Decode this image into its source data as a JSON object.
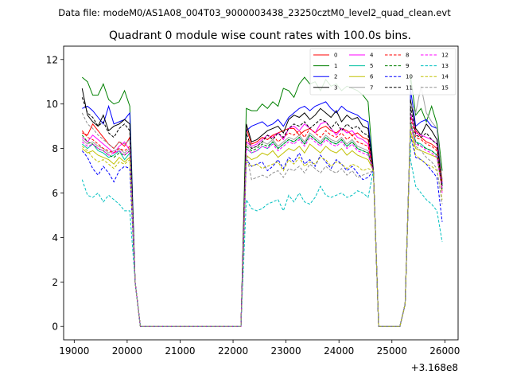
{
  "header": {
    "data_file": "Data file: modeM0/AS1A08_004T03_9000003438_23250cztM0_level2_quad_clean.evt"
  },
  "chart_data": {
    "type": "line",
    "title": "Quadrant 0 module wise count rates with 100.0s bins.",
    "xlabel": "",
    "ylabel": "",
    "x_offset_label": "+3.168e8",
    "xlim": [
      18800,
      26250
    ],
    "ylim": [
      -0.6,
      12.6
    ],
    "x_ticks": [
      19000,
      20000,
      21000,
      22000,
      23000,
      24000,
      25000,
      26000
    ],
    "x_tick_labels": [
      "19000",
      "20000",
      "21000",
      "22000",
      "23000",
      "24000",
      "25000",
      "26000"
    ],
    "y_ticks": [
      0,
      2,
      4,
      6,
      8,
      10,
      12
    ],
    "y_tick_labels": [
      "0",
      "2",
      "4",
      "6",
      "8",
      "10",
      "12"
    ],
    "legend_position": "top-right",
    "segments": [
      {
        "start": 19150,
        "n": 10
      },
      {
        "start": 20150,
        "n": 2,
        "values": [
          2.0,
          0.0
        ]
      },
      {
        "start": 20250,
        "n": 20,
        "values": [
          0,
          0,
          0,
          0,
          0,
          0,
          0,
          0,
          0,
          0,
          0,
          0,
          0,
          0,
          0,
          0,
          0,
          0,
          0,
          0
        ]
      },
      {
        "start": 22250,
        "n": 24
      },
      {
        "start": 24650,
        "n": 4,
        "values": [
          7.0,
          0.0,
          0.0,
          0.0
        ]
      },
      {
        "start": 25050,
        "n": 4,
        "values": [
          0.0,
          0.0,
          1.0,
          9.0
        ]
      },
      {
        "start": 25350,
        "n": 7
      }
    ],
    "series": [
      {
        "name": "0",
        "color": "#ff0000",
        "dashed": false,
        "s1": [
          8.7,
          8.6,
          9.1,
          8.8,
          8.5,
          8.2,
          8.0,
          8.3,
          8.1,
          8.5
        ],
        "s2": [
          8.9,
          8.2,
          8.3,
          8.5,
          8.4,
          8.6,
          8.7,
          8.8,
          8.9,
          8.9,
          8.6,
          8.8,
          8.9,
          8.7,
          8.9,
          9.0,
          8.8,
          8.7,
          8.9,
          8.8,
          8.6,
          8.7,
          8.5,
          8.4
        ],
        "s3": [
          9.5,
          8.8,
          8.5,
          8.3,
          8.2,
          8.0,
          6.6
        ]
      },
      {
        "name": "1",
        "color": "#008000",
        "dashed": false,
        "s1": [
          11.2,
          11.0,
          10.4,
          10.4,
          10.9,
          10.2,
          10.0,
          10.1,
          10.6,
          9.9
        ],
        "s2": [
          9.8,
          9.7,
          9.7,
          10.0,
          9.8,
          10.1,
          9.9,
          10.7,
          10.6,
          10.3,
          10.9,
          11.2,
          10.9,
          11.0,
          10.6,
          11.1,
          10.8,
          10.9,
          10.6,
          10.8,
          10.7,
          10.6,
          10.4,
          10.1
        ],
        "s3": [
          11.3,
          9.5,
          9.8,
          9.2,
          9.9,
          9.1,
          7.0
        ]
      },
      {
        "name": "2",
        "color": "#0000ff",
        "dashed": false,
        "s1": [
          9.8,
          9.9,
          9.7,
          9.4,
          9.1,
          9.9,
          9.1,
          9.2,
          9.3,
          9.6
        ],
        "s2": [
          8.8,
          9.0,
          9.1,
          9.2,
          9.0,
          9.1,
          9.3,
          9.0,
          9.4,
          9.6,
          9.8,
          9.9,
          9.7,
          9.9,
          10.0,
          10.1,
          9.8,
          9.6,
          9.9,
          9.7,
          9.6,
          9.5,
          9.3,
          9.2
        ],
        "s3": [
          10.7,
          9.0,
          9.2,
          9.3,
          9.0,
          8.9,
          6.4
        ]
      },
      {
        "name": "3",
        "color": "#000000",
        "dashed": false,
        "s1": [
          10.7,
          9.5,
          9.2,
          9.0,
          9.5,
          8.8,
          9.0,
          9.1,
          9.3,
          9.1
        ],
        "s2": [
          9.1,
          8.3,
          8.4,
          8.6,
          8.8,
          8.9,
          9.0,
          8.7,
          9.3,
          9.5,
          9.4,
          9.6,
          9.3,
          9.5,
          9.8,
          9.6,
          9.4,
          9.7,
          9.2,
          9.5,
          9.3,
          9.4,
          9.0,
          8.9
        ],
        "s3": [
          10.2,
          8.9,
          8.6,
          9.1,
          8.8,
          8.4,
          6.3
        ]
      },
      {
        "name": "4",
        "color": "#ff00ff",
        "dashed": false,
        "s1": [
          8.5,
          8.3,
          8.6,
          8.4,
          8.2,
          8.0,
          7.8,
          8.1,
          8.3,
          7.9
        ],
        "s2": [
          8.3,
          8.1,
          8.2,
          8.4,
          8.6,
          8.5,
          8.7,
          8.4,
          8.9,
          9.0,
          8.8,
          9.1,
          8.9,
          8.7,
          9.1,
          9.2,
          8.9,
          8.6,
          8.9,
          8.7,
          8.8,
          8.5,
          8.4,
          8.2
        ],
        "s3": [
          9.6,
          8.7,
          8.6,
          8.5,
          8.4,
          8.2,
          6.0
        ]
      },
      {
        "name": "5",
        "color": "#00c0a0",
        "dashed": false,
        "s1": [
          8.2,
          8.0,
          8.2,
          7.9,
          7.8,
          7.6,
          7.7,
          7.9,
          7.5,
          7.8
        ],
        "s2": [
          8.0,
          7.8,
          7.9,
          8.1,
          8.0,
          8.3,
          8.0,
          8.2,
          8.4,
          8.3,
          8.5,
          8.2,
          8.6,
          8.4,
          8.2,
          8.5,
          8.3,
          8.2,
          8.4,
          8.1,
          8.3,
          8.0,
          7.9,
          7.8
        ],
        "s3": [
          9.2,
          8.3,
          8.2,
          8.0,
          7.9,
          7.7,
          6.2
        ]
      },
      {
        "name": "6",
        "color": "#c0c000",
        "dashed": false,
        "s1": [
          8.0,
          7.8,
          7.9,
          7.7,
          7.6,
          7.5,
          7.3,
          7.6,
          7.4,
          7.6
        ],
        "s2": [
          7.7,
          7.5,
          7.6,
          7.8,
          7.7,
          7.9,
          7.6,
          7.8,
          8.0,
          7.9,
          8.1,
          7.8,
          8.2,
          8.0,
          7.8,
          8.1,
          7.9,
          7.8,
          8.0,
          7.7,
          7.9,
          7.7,
          7.6,
          7.5
        ],
        "s3": [
          8.8,
          8.0,
          7.9,
          7.8,
          7.7,
          7.6,
          6.1
        ]
      },
      {
        "name": "7",
        "color": "#a0a0a0",
        "dashed": false,
        "s1": [
          8.4,
          8.2,
          8.3,
          8.1,
          8.0,
          7.8,
          7.9,
          8.0,
          7.8,
          8.0
        ],
        "s2": [
          8.2,
          8.0,
          8.1,
          8.3,
          8.2,
          8.4,
          8.1,
          8.3,
          8.5,
          8.4,
          8.6,
          8.3,
          8.7,
          8.5,
          8.3,
          8.6,
          8.4,
          8.3,
          8.5,
          8.2,
          8.4,
          8.1,
          8.0,
          7.9
        ],
        "s3": [
          10.0,
          9.6,
          10.8,
          9.6,
          9.2,
          8.9,
          6.6
        ]
      },
      {
        "name": "8",
        "color": "#ff0000",
        "dashed": true,
        "s1": [
          8.8,
          8.5,
          8.4,
          8.2,
          8.0,
          7.9,
          7.8,
          8.0,
          7.9,
          8.1
        ],
        "s2": [
          8.4,
          8.2,
          8.3,
          8.5,
          8.4,
          8.6,
          8.3,
          8.5,
          8.7,
          8.6,
          8.8,
          8.5,
          8.9,
          8.7,
          8.5,
          8.8,
          8.6,
          8.5,
          8.7,
          8.4,
          8.6,
          8.3,
          8.2,
          8.1
        ],
        "s3": [
          9.4,
          8.5,
          8.4,
          8.2,
          8.1,
          7.9,
          6.5
        ]
      },
      {
        "name": "9",
        "color": "#008000",
        "dashed": true,
        "s1": [
          8.6,
          8.3,
          8.2,
          8.0,
          7.9,
          7.7,
          7.6,
          7.8,
          7.7,
          7.9
        ],
        "s2": [
          8.1,
          7.9,
          8.0,
          8.2,
          8.1,
          8.3,
          8.0,
          8.2,
          8.4,
          8.3,
          8.5,
          8.2,
          8.6,
          8.4,
          8.2,
          8.5,
          8.3,
          8.2,
          8.4,
          8.1,
          8.3,
          8.0,
          7.9,
          7.8
        ],
        "s3": [
          9.1,
          8.3,
          8.1,
          8.0,
          7.9,
          7.7,
          6.3
        ]
      },
      {
        "name": "10",
        "color": "#0000ff",
        "dashed": true,
        "s1": [
          7.9,
          7.6,
          7.1,
          6.8,
          7.2,
          6.9,
          6.5,
          7.0,
          7.2,
          7.1
        ],
        "s2": [
          7.5,
          7.2,
          7.3,
          7.4,
          7.0,
          7.2,
          7.5,
          7.1,
          7.6,
          7.4,
          7.8,
          7.3,
          7.5,
          7.2,
          7.7,
          7.4,
          7.1,
          7.5,
          7.3,
          7.0,
          7.2,
          6.9,
          6.6,
          6.7
        ],
        "s3": [
          8.6,
          7.6,
          7.5,
          7.3,
          7.0,
          6.7,
          4.7
        ]
      },
      {
        "name": "11",
        "color": "#000000",
        "dashed": true,
        "s1": [
          10.3,
          9.6,
          9.4,
          9.0,
          9.2,
          8.7,
          8.5,
          8.9,
          9.1,
          8.8
        ],
        "s2": [
          8.7,
          8.0,
          8.1,
          8.3,
          8.6,
          8.4,
          8.7,
          8.5,
          8.9,
          9.1,
          9.0,
          9.2,
          8.9,
          9.1,
          9.3,
          9.2,
          8.9,
          9.2,
          8.8,
          9.1,
          8.9,
          9.0,
          8.7,
          8.6
        ],
        "s3": [
          9.9,
          8.6,
          8.5,
          8.7,
          8.4,
          8.2,
          6.1
        ]
      },
      {
        "name": "12",
        "color": "#ff00ff",
        "dashed": true,
        "s1": [
          8.3,
          8.1,
          8.2,
          8.0,
          7.9,
          7.7,
          7.8,
          7.9,
          7.7,
          7.9
        ],
        "s2": [
          8.0,
          7.8,
          7.9,
          8.1,
          8.0,
          8.2,
          7.9,
          8.1,
          8.3,
          8.2,
          8.4,
          8.1,
          8.5,
          8.3,
          8.1,
          8.4,
          8.2,
          8.1,
          8.3,
          8.0,
          8.2,
          7.9,
          7.8,
          7.7
        ],
        "s3": [
          9.0,
          8.2,
          8.1,
          7.9,
          7.8,
          7.6,
          6.2
        ]
      },
      {
        "name": "13",
        "color": "#00c0c0",
        "dashed": true,
        "s1": [
          6.6,
          5.9,
          5.8,
          6.0,
          5.6,
          5.9,
          5.7,
          5.5,
          5.2,
          5.2
        ],
        "s2": [
          5.7,
          5.3,
          5.2,
          5.3,
          5.5,
          5.6,
          5.7,
          5.2,
          5.9,
          5.6,
          6.0,
          5.6,
          5.5,
          5.8,
          6.3,
          5.9,
          5.8,
          5.9,
          6.0,
          5.8,
          5.9,
          6.1,
          6.0,
          5.8
        ],
        "s3": [
          7.5,
          6.3,
          6.0,
          5.7,
          5.5,
          5.2,
          3.8
        ]
      },
      {
        "name": "14",
        "color": "#c0c000",
        "dashed": true,
        "s1": [
          8.1,
          7.9,
          7.6,
          7.4,
          7.5,
          7.3,
          7.1,
          7.4,
          7.3,
          7.5
        ],
        "s2": [
          7.4,
          7.2,
          7.3,
          7.1,
          7.2,
          7.3,
          7.4,
          7.0,
          7.5,
          7.3,
          7.6,
          7.2,
          7.4,
          7.3,
          7.6,
          7.5,
          7.2,
          7.4,
          7.3,
          7.1,
          7.3,
          7.2,
          7.0,
          7.1
        ],
        "s3": [
          8.8,
          7.7,
          7.5,
          7.3,
          7.2,
          7.0,
          5.7
        ]
      },
      {
        "name": "15",
        "color": "#909090",
        "dashed": true,
        "s1": [
          9.6,
          9.1,
          8.9,
          8.6,
          8.4,
          8.2,
          8.0,
          8.3,
          8.2,
          8.4
        ],
        "s2": [
          7.8,
          6.6,
          6.7,
          6.8,
          6.7,
          6.9,
          7.0,
          6.7,
          7.1,
          7.0,
          7.2,
          6.9,
          7.3,
          7.1,
          6.9,
          7.2,
          7.0,
          6.9,
          7.1,
          6.8,
          7.0,
          6.7,
          6.8,
          6.9
        ],
        "s3": [
          9.3,
          8.1,
          7.9,
          7.6,
          7.4,
          7.1,
          5.5
        ]
      }
    ]
  }
}
